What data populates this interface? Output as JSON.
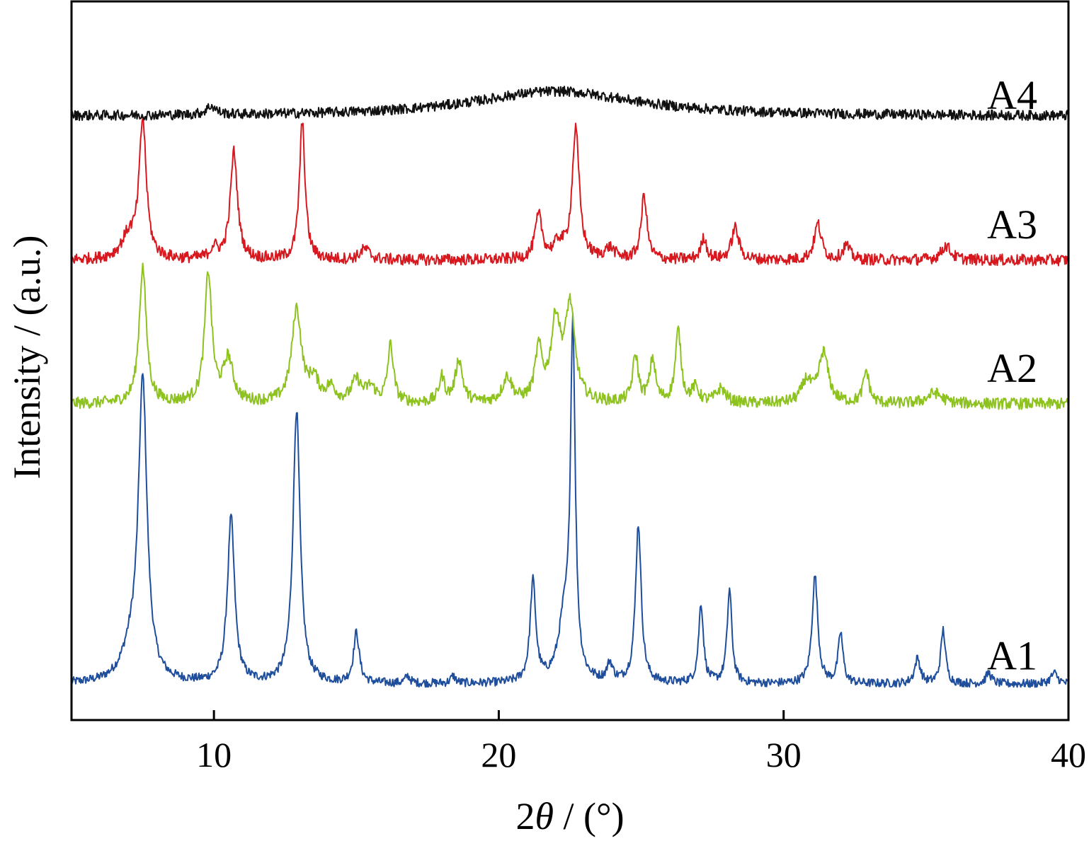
{
  "chart_data": {
    "type": "line",
    "xlabel_prefix": "2",
    "xlabel_symbol": "θ",
    "xlabel_suffix": " / (°)",
    "ylabel": "Intensity / (a.u.)",
    "xlim": [
      5,
      40
    ],
    "ylim": [
      0,
      100
    ],
    "x_ticks": [
      10,
      20,
      30,
      40
    ],
    "x_tick_labels": [
      "10",
      "20",
      "30",
      "40"
    ],
    "y_ticks_visible": false,
    "grid": false,
    "legend": "inline-right",
    "series": [
      {
        "name": "A1",
        "color": "#1f4e9c",
        "baseline": 5,
        "noise": 0.6,
        "peaks": [
          [
            7.5,
            41,
            0.18
          ],
          [
            7.1,
            4,
            0.4
          ],
          [
            10.6,
            23,
            0.15
          ],
          [
            12.9,
            38,
            0.15
          ],
          [
            15.0,
            7,
            0.12
          ],
          [
            16.8,
            1.0,
            0.1
          ],
          [
            18.4,
            1.0,
            0.1
          ],
          [
            21.2,
            14,
            0.12
          ],
          [
            22.3,
            8,
            0.25
          ],
          [
            22.6,
            48,
            0.1
          ],
          [
            23.9,
            2.5,
            0.12
          ],
          [
            24.9,
            22,
            0.12
          ],
          [
            27.1,
            11,
            0.1
          ],
          [
            28.1,
            13,
            0.1
          ],
          [
            31.1,
            15,
            0.12
          ],
          [
            32.0,
            7,
            0.1
          ],
          [
            34.7,
            3.5,
            0.12
          ],
          [
            35.6,
            7.5,
            0.1
          ],
          [
            37.2,
            1.5,
            0.12
          ],
          [
            39.5,
            1.5,
            0.15
          ]
        ],
        "label_y": 9
      },
      {
        "name": "A2",
        "color": "#8dc21f",
        "baseline": 44,
        "noise": 0.8,
        "peaks": [
          [
            7.5,
            19,
            0.15
          ],
          [
            9.8,
            18,
            0.15
          ],
          [
            10.5,
            6,
            0.2
          ],
          [
            12.9,
            13,
            0.2
          ],
          [
            13.5,
            3,
            0.2
          ],
          [
            14.1,
            2,
            0.2
          ],
          [
            15.0,
            3,
            0.2
          ],
          [
            15.5,
            2,
            0.2
          ],
          [
            16.2,
            8,
            0.12
          ],
          [
            18.0,
            3.5,
            0.12
          ],
          [
            18.6,
            6,
            0.15
          ],
          [
            20.3,
            3.5,
            0.2
          ],
          [
            21.4,
            7,
            0.15
          ],
          [
            22.0,
            11,
            0.2
          ],
          [
            22.5,
            13,
            0.2
          ],
          [
            24.8,
            6.5,
            0.12
          ],
          [
            25.4,
            6,
            0.12
          ],
          [
            26.3,
            10,
            0.12
          ],
          [
            26.9,
            2,
            0.15
          ],
          [
            27.8,
            2,
            0.2
          ],
          [
            30.8,
            3,
            0.2
          ],
          [
            31.4,
            7,
            0.2
          ],
          [
            32.9,
            4.5,
            0.12
          ],
          [
            35.3,
            1.5,
            0.3
          ]
        ],
        "label_y": 49
      },
      {
        "name": "A3",
        "color": "#d7191f",
        "baseline": 64,
        "noise": 0.8,
        "peaks": [
          [
            7.5,
            19,
            0.15
          ],
          [
            7.0,
            3,
            0.3
          ],
          [
            10.0,
            1.5,
            0.15
          ],
          [
            10.7,
            15,
            0.15
          ],
          [
            13.1,
            19,
            0.12
          ],
          [
            15.3,
            1.5,
            0.2
          ],
          [
            21.4,
            6,
            0.15
          ],
          [
            22.1,
            2,
            0.2
          ],
          [
            22.7,
            18,
            0.15
          ],
          [
            23.9,
            1.5,
            0.2
          ],
          [
            25.1,
            9,
            0.12
          ],
          [
            27.2,
            3,
            0.12
          ],
          [
            28.3,
            4.5,
            0.15
          ],
          [
            31.2,
            5,
            0.15
          ],
          [
            32.2,
            2,
            0.15
          ],
          [
            35.7,
            2,
            0.2
          ]
        ],
        "label_y": 69
      },
      {
        "name": "A4",
        "color": "#111111",
        "baseline": 84,
        "noise": 0.7,
        "peaks": [
          [
            9.9,
            1.2,
            0.2
          ],
          [
            22.0,
            3.5,
            3.5
          ]
        ],
        "label_y": 87
      }
    ]
  }
}
